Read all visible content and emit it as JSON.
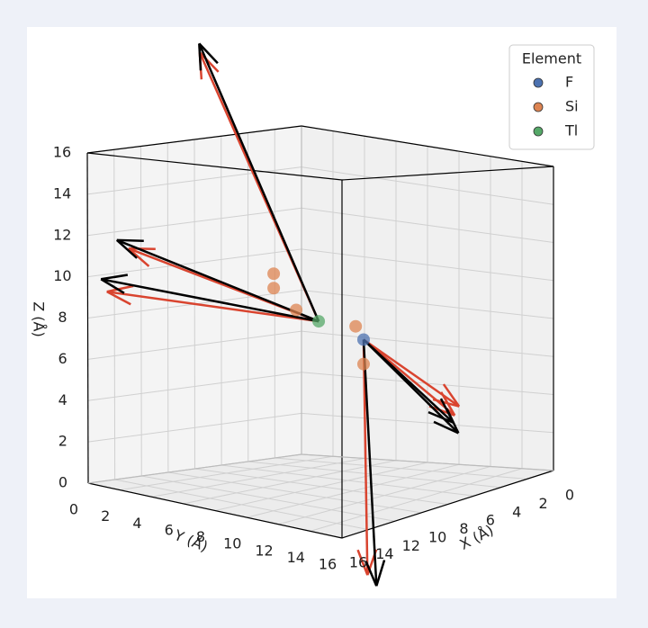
{
  "chart_data": {
    "type": "scatter3d",
    "xlabel": "X (Å)",
    "ylabel": "Y (Å)",
    "zlabel": "Z (Å)",
    "xlim": [
      0,
      16
    ],
    "ylim": [
      0,
      16
    ],
    "zlim": [
      0,
      16
    ],
    "xticks": [
      0,
      2,
      4,
      6,
      8,
      10,
      12,
      14,
      16
    ],
    "yticks": [
      0,
      2,
      4,
      6,
      8,
      10,
      12,
      14,
      16
    ],
    "zticks": [
      0,
      2,
      4,
      6,
      8,
      10,
      12,
      14,
      16
    ],
    "grid": true,
    "legend_title": "Element",
    "legend": "upper right",
    "series": [
      {
        "name": "F",
        "color": "#4c72b0",
        "x": [
          6
        ],
        "y": [
          9
        ],
        "z": [
          7
        ]
      },
      {
        "name": "Si",
        "color": "#dd8452",
        "x": [
          8,
          8,
          7.5,
          6,
          6
        ],
        "y": [
          5,
          5,
          6,
          8.5,
          9
        ],
        "z": [
          10,
          9.3,
          8.3,
          7.6,
          5.8
        ]
      },
      {
        "name": "Tl",
        "color": "#55a868",
        "x": [
          7
        ],
        "y": [
          7
        ],
        "z": [
          7.8
        ]
      }
    ],
    "arrows": [
      {
        "color": "#d9442f",
        "x": [
          7,
          6,
          7,
          7,
          6,
          6
        ],
        "y": [
          7,
          9,
          7,
          7,
          9,
          9
        ],
        "z": [
          7.8,
          7,
          7.8,
          7.8,
          7,
          7
        ],
        "u": [
          3.2,
          5.2,
          7.6,
          7.8,
          -2.2,
          -0.2
        ],
        "v": [
          -4.8,
          4.6,
          -5.6,
          -6.8,
          4.2,
          5.6
        ],
        "w": [
          12.8,
          -10,
          3.6,
          1.4,
          -3.2,
          -3.2
        ]
      },
      {
        "color": "#000000",
        "x": [
          7,
          6,
          7,
          7,
          6,
          6
        ],
        "y": [
          7,
          9,
          7,
          7,
          9,
          9
        ],
        "z": [
          7.8,
          7,
          7.8,
          7.8,
          7,
          7
        ],
        "u": [
          3,
          5,
          8,
          8,
          -2,
          0
        ],
        "v": [
          -5,
          5,
          -6,
          -7,
          4,
          6
        ],
        "w": [
          13.2,
          -10.5,
          4,
          2,
          -4,
          -4
        ]
      }
    ]
  }
}
